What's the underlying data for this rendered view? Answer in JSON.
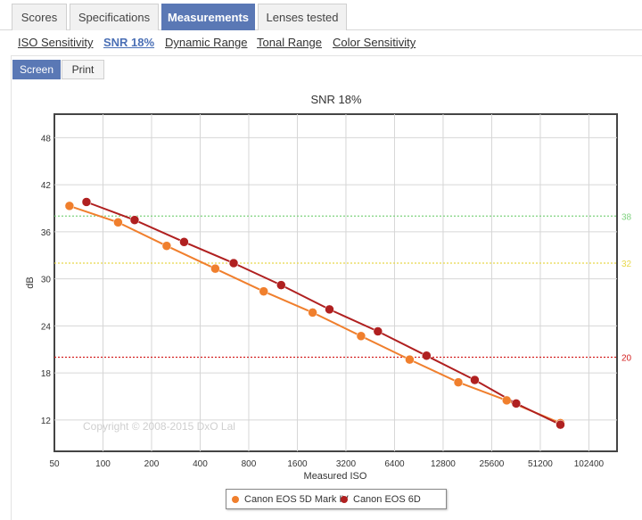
{
  "tabs": [
    {
      "label": "Scores"
    },
    {
      "label": "Specifications"
    },
    {
      "label": "Measurements"
    },
    {
      "label": "Lenses tested"
    }
  ],
  "subnav": [
    {
      "label": "ISO Sensitivity"
    },
    {
      "label": "SNR 18%"
    },
    {
      "label": "Dynamic Range"
    },
    {
      "label": "Tonal Range"
    },
    {
      "label": "Color Sensitivity"
    }
  ],
  "view_buttons": {
    "screen": "Screen",
    "print": "Print"
  },
  "colors": {
    "accent": "#5a78b5",
    "series1": "#f07f2d",
    "series2": "#b02020",
    "line38": "#7ed27e",
    "line32": "#e8d84a",
    "line20": "#d42020"
  },
  "chart_data": {
    "type": "line",
    "title": "SNR 18%",
    "xlabel": "Measured ISO",
    "ylabel": "dB",
    "x_scale": "log",
    "x_ticks": [
      "50",
      "100",
      "200",
      "400",
      "800",
      "1600",
      "3200",
      "6400",
      "12800",
      "25600",
      "51200",
      "102400"
    ],
    "y_ticks": [
      "12",
      "18",
      "24",
      "30",
      "36",
      "42",
      "48"
    ],
    "ylim": [
      8,
      51
    ],
    "reference_lines": [
      {
        "value": 38,
        "label": "38"
      },
      {
        "value": 32,
        "label": "32"
      },
      {
        "value": 20,
        "label": "20"
      }
    ],
    "watermark": "Copyright © 2008-2015 DxO Lal",
    "series": [
      {
        "name": "Canon EOS 5D Mark IV",
        "x": [
          62,
          124,
          248,
          496,
          990,
          1990,
          3970,
          7940,
          15900,
          31700,
          68200
        ],
        "y": [
          39.3,
          37.2,
          34.2,
          31.3,
          28.4,
          25.7,
          22.7,
          19.7,
          16.8,
          14.5,
          11.6
        ]
      },
      {
        "name": "Canon EOS 6D",
        "x": [
          79,
          157,
          318,
          645,
          1270,
          2530,
          5050,
          10100,
          20100,
          36300,
          68200
        ],
        "y": [
          39.8,
          37.5,
          34.7,
          32.0,
          29.2,
          26.1,
          23.3,
          20.2,
          17.1,
          14.1,
          11.4
        ]
      }
    ]
  }
}
